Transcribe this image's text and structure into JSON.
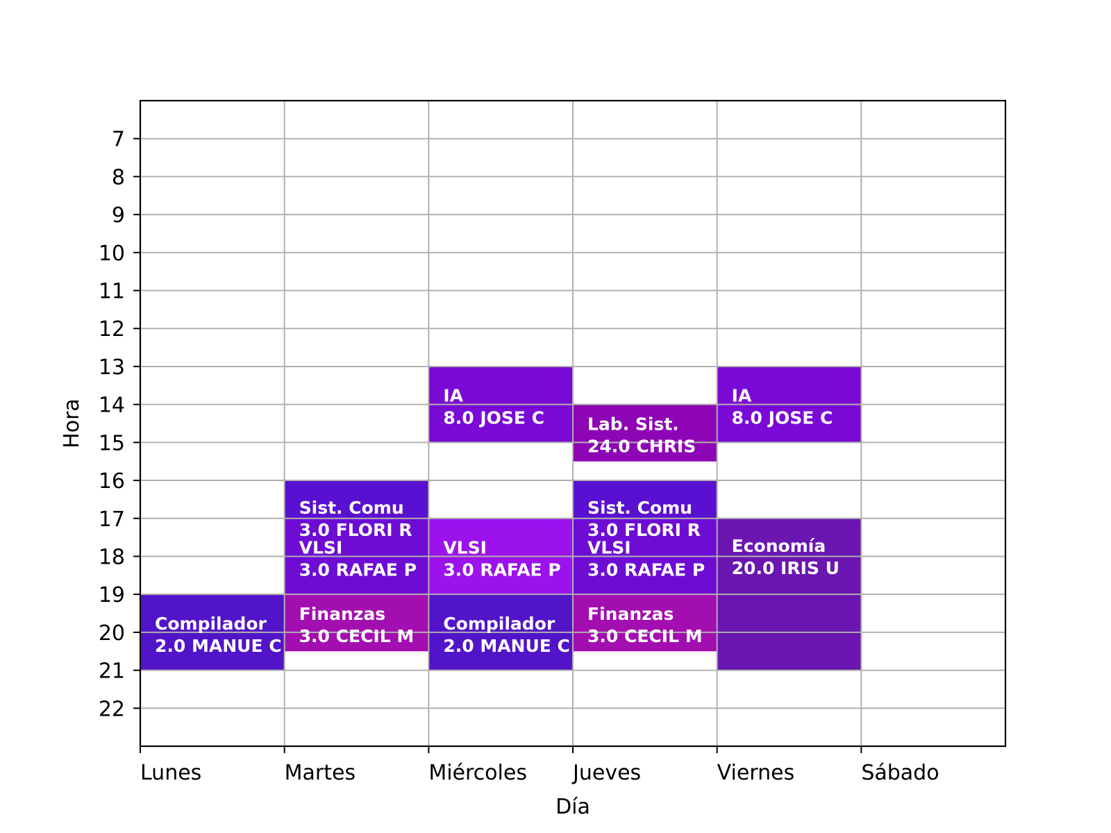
{
  "chart_data": {
    "type": "timetable",
    "xlabel": "Día",
    "ylabel": "Hora",
    "days": [
      "Lunes",
      "Martes",
      "Miércoles",
      "Jueves",
      "Viernes",
      "Sábado"
    ],
    "hours": [
      7,
      8,
      9,
      10,
      11,
      12,
      13,
      14,
      15,
      16,
      17,
      18,
      19,
      20,
      21,
      22
    ],
    "ylim": [
      23,
      6
    ],
    "xlim": [
      0,
      6
    ],
    "grid": true,
    "events": [
      {
        "day": "Lunes",
        "start": 19,
        "end": 21,
        "line1": "Compilador",
        "line2": "2.0 MANUE C",
        "color": "#5214c8"
      },
      {
        "day": "Martes",
        "start": 16,
        "end": 19,
        "line1": "Sist. Comu",
        "line2": "3.0 FLORI R",
        "color": "#5a10d0"
      },
      {
        "day": "Martes",
        "start": 17,
        "end": 19,
        "line1": "VLSI",
        "line2": "3.0 RAFAE P",
        "color": "#6e0cd4"
      },
      {
        "day": "Martes",
        "start": 19,
        "end": 20.5,
        "line1": "Finanzas",
        "line2": "3.0 CECIL M",
        "color": "#a30eb0"
      },
      {
        "day": "Miércoles",
        "start": 13,
        "end": 15,
        "line1": "IA",
        "line2": "8.0 JOSE C",
        "color": "#7a0ad6"
      },
      {
        "day": "Miércoles",
        "start": 17,
        "end": 19,
        "line1": "VLSI",
        "line2": "3.0 RAFAE P",
        "color": "#9b12ec"
      },
      {
        "day": "Miércoles",
        "start": 19,
        "end": 21,
        "line1": "Compilador",
        "line2": "2.0 MANUE C",
        "color": "#5214c8"
      },
      {
        "day": "Jueves",
        "start": 14,
        "end": 15.5,
        "line1": "Lab. Sist.",
        "line2": "24.0 CHRIS",
        "color": "#8d05b4"
      },
      {
        "day": "Jueves",
        "start": 16,
        "end": 19,
        "line1": "Sist. Comu",
        "line2": "3.0 FLORI R",
        "color": "#5a10d0"
      },
      {
        "day": "Jueves",
        "start": 17,
        "end": 19,
        "line1": "VLSI",
        "line2": "3.0 RAFAE P",
        "color": "#6e0cd4"
      },
      {
        "day": "Jueves",
        "start": 19,
        "end": 20.5,
        "line1": "Finanzas",
        "line2": "3.0 CECIL M",
        "color": "#a30eb0"
      },
      {
        "day": "Viernes",
        "start": 13,
        "end": 15,
        "line1": "IA",
        "line2": "8.0 JOSE C",
        "color": "#7a0ad6"
      },
      {
        "day": "Viernes",
        "start": 17,
        "end": 21,
        "line1": "Economía",
        "line2": "20.0 IRIS U",
        "color": "#6b16b0"
      }
    ]
  }
}
